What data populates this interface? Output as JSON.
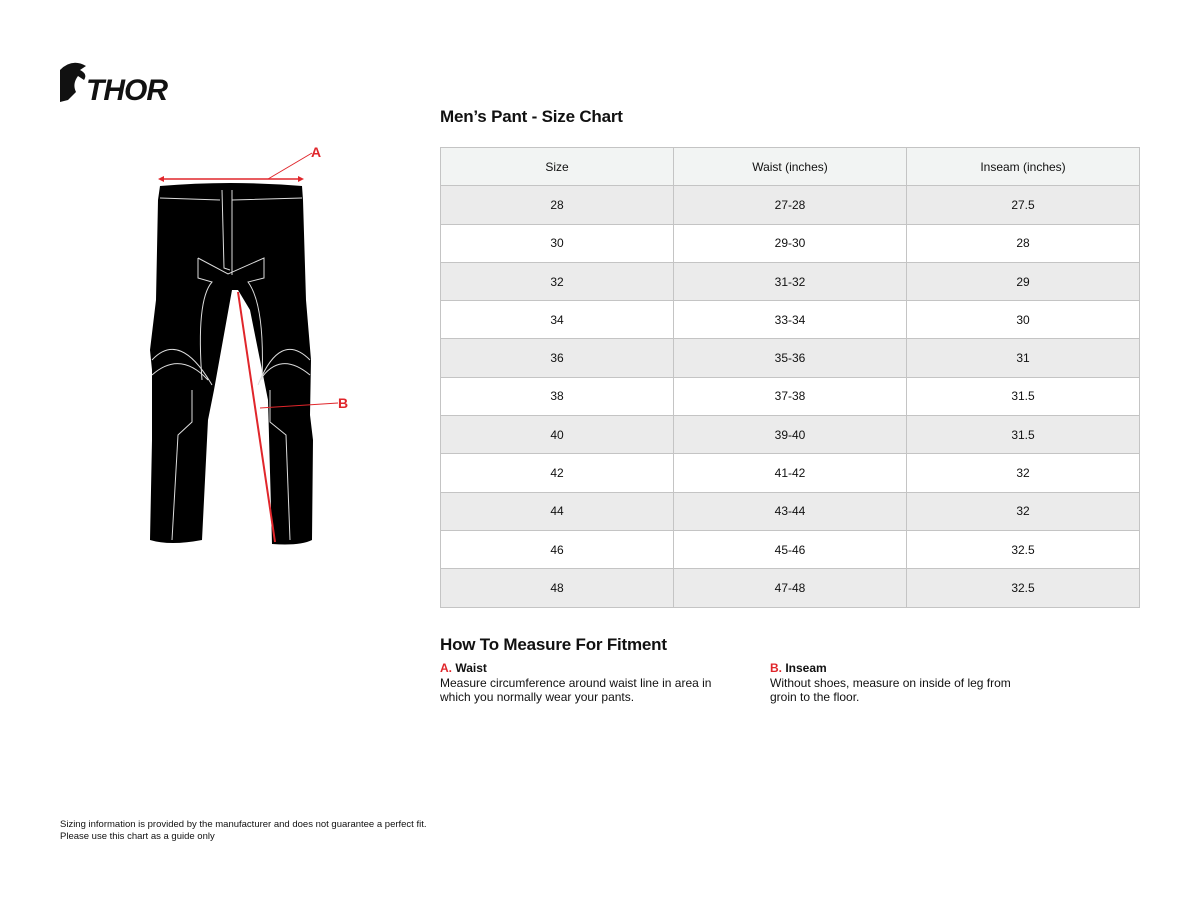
{
  "brand": {
    "logo_text": "THOR"
  },
  "diagram": {
    "label_a": "A",
    "label_b": "B",
    "accent_color": "#e0262b"
  },
  "title": "Men’s Pant - Size Chart",
  "table": {
    "headers": [
      "Size",
      "Waist (inches)",
      "Inseam (inches)"
    ],
    "rows": [
      [
        "28",
        "27-28",
        "27.5"
      ],
      [
        "30",
        "29-30",
        "28"
      ],
      [
        "32",
        "31-32",
        "29"
      ],
      [
        "34",
        "33-34",
        "30"
      ],
      [
        "36",
        "35-36",
        "31"
      ],
      [
        "38",
        "37-38",
        "31.5"
      ],
      [
        "40",
        "39-40",
        "31.5"
      ],
      [
        "42",
        "41-42",
        "32"
      ],
      [
        "44",
        "43-44",
        "32"
      ],
      [
        "46",
        "45-46",
        "32.5"
      ],
      [
        "48",
        "47-48",
        "32.5"
      ]
    ]
  },
  "measure": {
    "heading": "How To Measure For Fitment",
    "items": [
      {
        "key": "A.",
        "name": "Waist",
        "text": "Measure circumference around waist line in area in which you normally wear your pants."
      },
      {
        "key": "B.",
        "name": "Inseam",
        "text": "Without shoes, measure on inside of leg from groin to the floor."
      }
    ]
  },
  "footer": {
    "line1": "Sizing information is provided by the manufacturer and does not guarantee a perfect fit.",
    "line2": "Please use this chart as a guide only"
  }
}
